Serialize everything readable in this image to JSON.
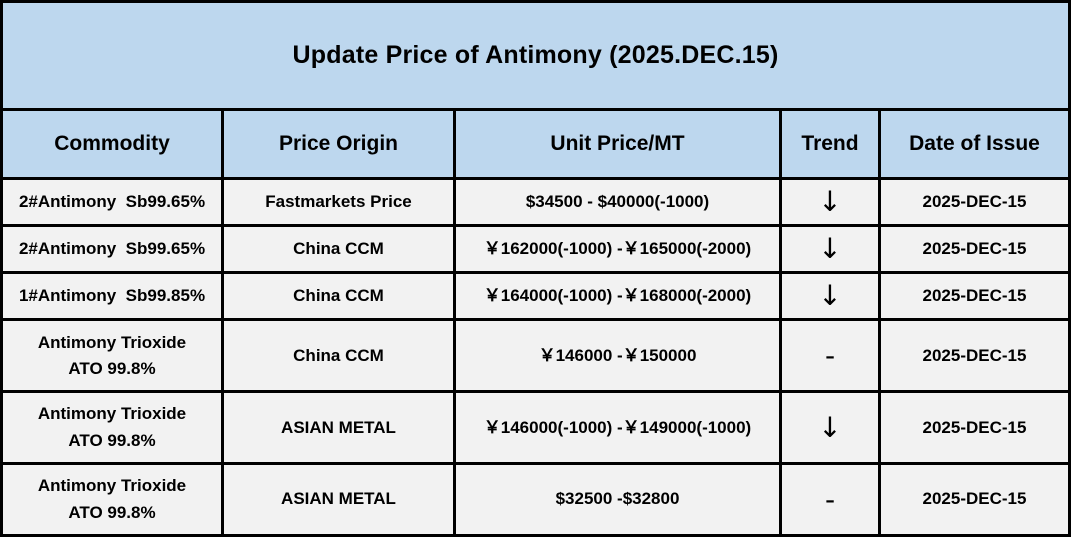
{
  "chart_data": {
    "type": "table",
    "title": "Update Price of Antimony (2025.DEC.15)",
    "columns": [
      "Commodity",
      "Price Origin",
      "Unit Price/MT",
      "Trend",
      "Date of Issue"
    ],
    "rows": [
      {
        "commodity": "2#Antimony  Sb99.65%",
        "origin": "Fastmarkets Price",
        "price": "$34500 - $40000(-1000)",
        "trend": "↓",
        "date": "2025-DEC-15"
      },
      {
        "commodity": "2#Antimony  Sb99.65%",
        "origin": "China CCM",
        "price": "￥162000(-1000) -￥165000(-2000)",
        "trend": "↓",
        "date": "2025-DEC-15"
      },
      {
        "commodity": "1#Antimony  Sb99.85%",
        "origin": "China CCM",
        "price": "￥164000(-1000) -￥168000(-2000)",
        "trend": "↓",
        "date": "2025-DEC-15"
      },
      {
        "commodity": "Antimony Trioxide\nATO 99.8%",
        "origin": "China CCM",
        "price": "￥146000 -￥150000",
        "trend": "-",
        "date": "2025-DEC-15"
      },
      {
        "commodity": "Antimony Trioxide\nATO 99.8%",
        "origin": "ASIAN METAL",
        "price": "￥146000(-1000) -￥149000(-1000)",
        "trend": "↓",
        "date": "2025-DEC-15"
      },
      {
        "commodity": "Antimony Trioxide\nATO 99.8%",
        "origin": "ASIAN METAL",
        "price": "$32500 -$32800",
        "trend": "-",
        "date": "2025-DEC-15"
      }
    ],
    "legend": "none",
    "grid": "on"
  },
  "colors": {
    "header_bg": "#BDD7EE",
    "row_bg": "#F2F2F2",
    "border": "#000000",
    "text": "#000000"
  }
}
